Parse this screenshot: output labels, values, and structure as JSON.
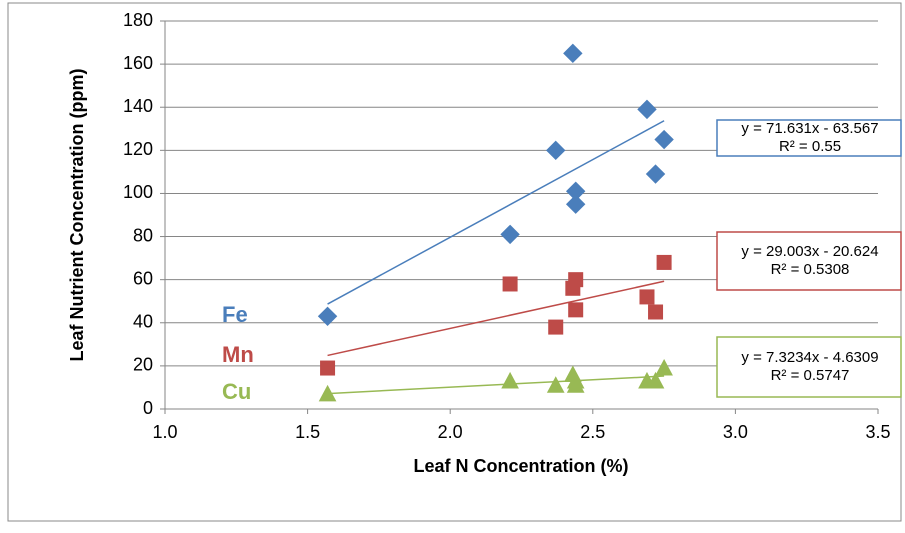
{
  "chart_data": {
    "type": "scatter",
    "x_label": "Leaf N Concentration (%)",
    "y_label": "Leaf Nutrient Concentration (ppm)",
    "x": [
      1.57,
      2.21,
      2.37,
      2.43,
      2.44,
      2.44,
      2.69,
      2.72,
      2.75
    ],
    "series": [
      {
        "name": "Fe",
        "color": "#4a7ebb",
        "marker": "diamond",
        "values": [
          43,
          81,
          120,
          165,
          101,
          95,
          139,
          109,
          125
        ],
        "trendline_label": [
          "y = 71.631x - 63.567",
          "R² = 0.55"
        ]
      },
      {
        "name": "Mn",
        "color": "#be4b48",
        "marker": "square",
        "values": [
          19,
          58,
          38,
          56,
          60,
          46,
          52,
          45,
          68
        ],
        "trendline_label": [
          "y = 29.003x - 20.624",
          "R² = 0.5308"
        ]
      },
      {
        "name": "Cu",
        "color": "#98b954",
        "marker": "triangle",
        "values": [
          7,
          13,
          11,
          16,
          13,
          11,
          13,
          13,
          19
        ],
        "trendline_label": [
          "y = 7.3234x - 4.6309",
          "R² = 0.5747"
        ]
      }
    ],
    "xlim": [
      1,
      3.5
    ],
    "xticks": [
      {
        "value": 1,
        "label": "1.0"
      },
      {
        "value": 1.5,
        "label": "1.5"
      },
      {
        "value": 2,
        "label": "2.0"
      },
      {
        "value": 2.5,
        "label": "2.5"
      },
      {
        "value": 3,
        "label": "3.0"
      },
      {
        "value": 3.5,
        "label": "3.5"
      }
    ],
    "ylim": [
      0,
      180
    ],
    "yticks": [
      0,
      20,
      40,
      60,
      80,
      100,
      120,
      140,
      160,
      180
    ],
    "grid": true
  }
}
